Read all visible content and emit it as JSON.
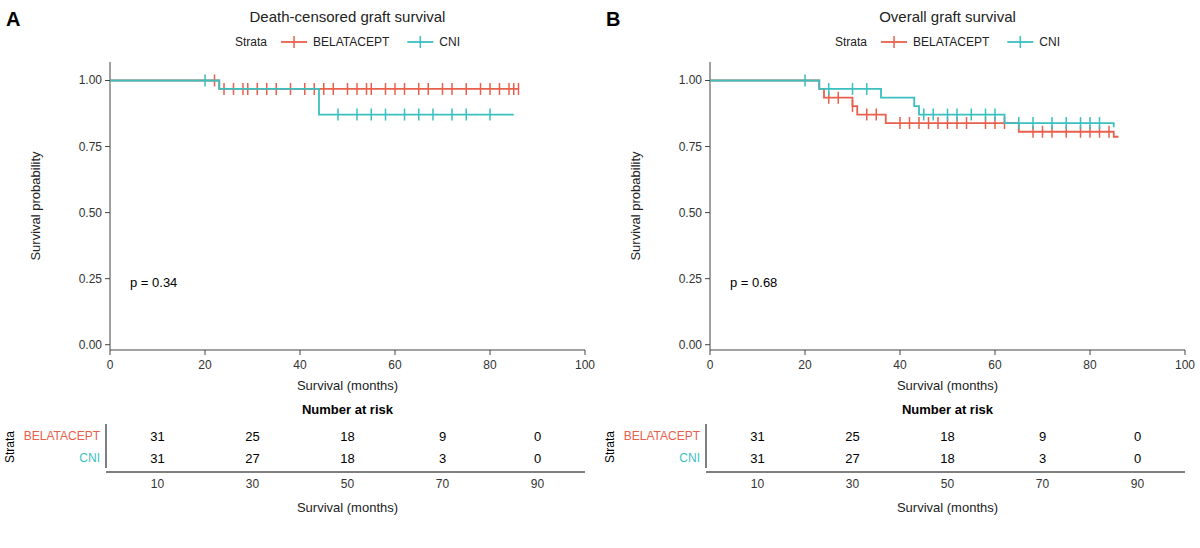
{
  "chart_data": [
    {
      "type": "step",
      "panel_label": "A",
      "title": "Death-censored graft survival",
      "xlabel": "Survival (months)",
      "ylabel": "Survival probability",
      "xlim": [
        0,
        100
      ],
      "ylim": [
        -0.02,
        1.07
      ],
      "xticks": [
        0,
        20,
        40,
        60,
        80,
        100
      ],
      "yticks": [
        {
          "value": 0.0,
          "label": "0.00"
        },
        {
          "value": 0.25,
          "label": "0.25"
        },
        {
          "value": 0.5,
          "label": "0.50"
        },
        {
          "value": 0.75,
          "label": "0.75"
        },
        {
          "value": 1.0,
          "label": "1.00"
        }
      ],
      "grid": false,
      "legend": "top",
      "legend_title": "Strata",
      "annotation": "p = 0.34",
      "series": [
        {
          "name": "BELATACEPT",
          "color": "#E8604C",
          "x": [
            0,
            23,
            23,
            25,
            30,
            35,
            40,
            43,
            44,
            48,
            52,
            55,
            60,
            63,
            67,
            72,
            75,
            80,
            84,
            86
          ],
          "values": [
            1.0,
            1.0,
            0.968,
            0.968,
            0.968,
            0.968,
            0.968,
            0.968,
            0.968,
            0.968,
            0.968,
            0.968,
            0.968,
            0.968,
            0.968,
            0.968,
            0.968,
            0.968,
            0.968,
            0.968
          ],
          "censor_x": [
            22,
            24,
            26,
            28,
            29,
            31,
            33,
            35,
            38,
            41,
            43,
            45,
            47,
            50,
            52,
            54,
            55,
            58,
            60,
            62,
            65,
            67,
            70,
            72,
            75,
            78,
            80,
            82,
            84,
            85,
            86
          ],
          "censor_values": [
            1.0,
            0.968,
            0.968,
            0.968,
            0.968,
            0.968,
            0.968,
            0.968,
            0.968,
            0.968,
            0.968,
            0.968,
            0.968,
            0.968,
            0.968,
            0.968,
            0.968,
            0.968,
            0.968,
            0.968,
            0.968,
            0.968,
            0.968,
            0.968,
            0.968,
            0.968,
            0.968,
            0.968,
            0.968,
            0.968,
            0.968
          ]
        },
        {
          "name": "CNI",
          "color": "#3BBFBF",
          "x": [
            0,
            20,
            23,
            43,
            44,
            47,
            48,
            52,
            55,
            58,
            60,
            62,
            65,
            68,
            72,
            75,
            78,
            80,
            85
          ],
          "values": [
            1.0,
            1.0,
            0.968,
            0.968,
            0.871,
            0.871,
            0.871,
            0.871,
            0.871,
            0.871,
            0.871,
            0.871,
            0.871,
            0.871,
            0.871,
            0.871,
            0.871,
            0.871,
            0.871
          ],
          "censor_x": [
            20,
            48,
            52,
            55,
            58,
            62,
            65,
            68,
            72,
            75,
            80
          ],
          "censor_values": [
            1.0,
            0.871,
            0.871,
            0.871,
            0.871,
            0.871,
            0.871,
            0.871,
            0.871,
            0.871,
            0.871
          ]
        }
      ],
      "risk_table": {
        "title": "Number at risk",
        "ylabel": "Strata",
        "xlabel": "Survival (months)",
        "x": [
          10,
          30,
          50,
          70,
          90
        ],
        "series": [
          {
            "name": "BELATACEPT",
            "values": [
              31,
              25,
              18,
              9,
              0
            ]
          },
          {
            "name": "CNI",
            "values": [
              31,
              27,
              18,
              3,
              0
            ]
          }
        ]
      }
    },
    {
      "type": "step",
      "panel_label": "B",
      "title": "Overall graft survival",
      "xlabel": "Survival (months)",
      "ylabel": "Survival probability",
      "xlim": [
        0,
        100
      ],
      "ylim": [
        -0.02,
        1.07
      ],
      "xticks": [
        0,
        20,
        40,
        60,
        80,
        100
      ],
      "yticks": [
        {
          "value": 0.0,
          "label": "0.00"
        },
        {
          "value": 0.25,
          "label": "0.25"
        },
        {
          "value": 0.5,
          "label": "0.50"
        },
        {
          "value": 0.75,
          "label": "0.75"
        },
        {
          "value": 1.0,
          "label": "1.00"
        }
      ],
      "grid": false,
      "legend": "top",
      "legend_title": "Strata",
      "annotation": "p = 0.68",
      "series": [
        {
          "name": "BELATACEPT",
          "color": "#E8604C",
          "x": [
            0,
            22,
            23,
            24,
            25,
            28,
            30,
            31,
            33,
            36,
            37,
            39,
            40,
            41,
            42,
            44,
            46,
            48,
            50,
            52,
            54,
            55,
            58,
            60,
            62,
            63,
            65,
            68,
            70,
            72,
            75,
            78,
            80,
            82,
            84,
            85,
            86
          ],
          "values": [
            1.0,
            1.0,
            0.968,
            0.935,
            0.935,
            0.935,
            0.903,
            0.871,
            0.871,
            0.871,
            0.839,
            0.839,
            0.839,
            0.839,
            0.839,
            0.839,
            0.839,
            0.839,
            0.839,
            0.839,
            0.839,
            0.839,
            0.839,
            0.839,
            0.839,
            0.839,
            0.806,
            0.806,
            0.806,
            0.806,
            0.806,
            0.806,
            0.806,
            0.806,
            0.806,
            0.787,
            0.787
          ],
          "censor_x": [
            25,
            27,
            30,
            33,
            35,
            40,
            42,
            44,
            46,
            48,
            50,
            52,
            54,
            58,
            60,
            62,
            68,
            70,
            72,
            75,
            78,
            80,
            82,
            84
          ],
          "censor_values": [
            0.935,
            0.935,
            0.903,
            0.871,
            0.871,
            0.839,
            0.839,
            0.839,
            0.839,
            0.839,
            0.839,
            0.839,
            0.839,
            0.839,
            0.839,
            0.839,
            0.806,
            0.806,
            0.806,
            0.806,
            0.806,
            0.806,
            0.806,
            0.806
          ]
        },
        {
          "name": "CNI",
          "color": "#3BBFBF",
          "x": [
            0,
            20,
            23,
            25,
            30,
            33,
            36,
            37,
            40,
            43,
            44,
            45,
            47,
            50,
            52,
            55,
            58,
            60,
            62,
            65,
            68,
            72,
            75,
            78,
            80,
            82,
            85
          ],
          "values": [
            1.0,
            1.0,
            0.968,
            0.968,
            0.968,
            0.968,
            0.935,
            0.935,
            0.935,
            0.903,
            0.871,
            0.871,
            0.871,
            0.871,
            0.871,
            0.871,
            0.871,
            0.871,
            0.839,
            0.839,
            0.839,
            0.839,
            0.839,
            0.839,
            0.839,
            0.839,
            0.823
          ],
          "censor_x": [
            20,
            25,
            30,
            33,
            45,
            47,
            50,
            52,
            55,
            58,
            60,
            65,
            68,
            72,
            75,
            78,
            80,
            82
          ],
          "censor_values": [
            1.0,
            0.968,
            0.968,
            0.968,
            0.871,
            0.871,
            0.871,
            0.871,
            0.871,
            0.871,
            0.871,
            0.839,
            0.839,
            0.839,
            0.839,
            0.839,
            0.839,
            0.839
          ]
        }
      ],
      "risk_table": {
        "title": "Number at risk",
        "ylabel": "Strata",
        "xlabel": "Survival (months)",
        "x": [
          10,
          30,
          50,
          70,
          90
        ],
        "series": [
          {
            "name": "BELATACEPT",
            "values": [
              31,
              25,
              18,
              9,
              0
            ]
          },
          {
            "name": "CNI",
            "values": [
              31,
              27,
              18,
              3,
              0
            ]
          }
        ]
      }
    }
  ]
}
